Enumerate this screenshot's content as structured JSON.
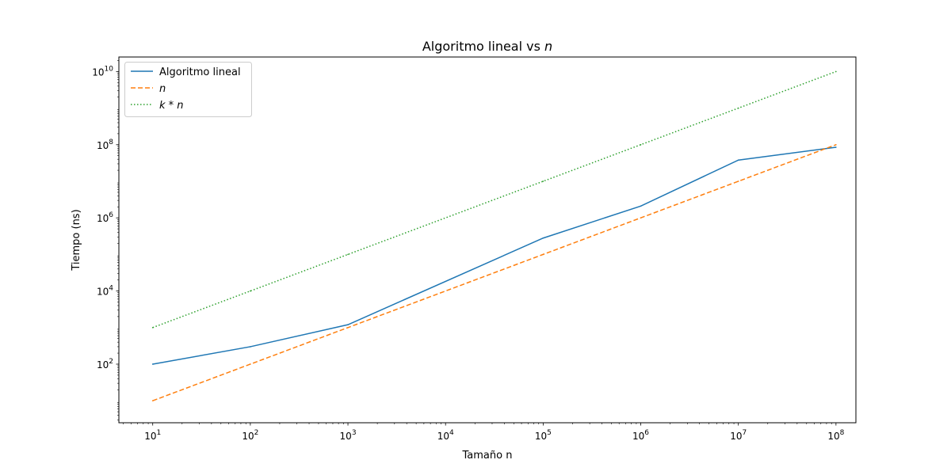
{
  "chart_data": {
    "type": "line",
    "title": "Algoritmo lineal vs n",
    "title_parts": {
      "prefix": "Algoritmo lineal vs ",
      "var": "n"
    },
    "xlabel": "Tamaño n",
    "ylabel": "Tiempo (ns)",
    "xscale": "log",
    "yscale": "log",
    "xlim": [
      4.5,
      160000000
    ],
    "ylim": [
      2.5,
      25000000000
    ],
    "x": [
      10,
      100,
      1000,
      100000,
      1000000,
      10000000,
      100000000
    ],
    "x_ticks": [
      10,
      100,
      1000,
      10000,
      100000,
      1000000,
      10000000,
      100000000
    ],
    "x_tick_labels": [
      {
        "base": "10",
        "exp": "1"
      },
      {
        "base": "10",
        "exp": "2"
      },
      {
        "base": "10",
        "exp": "3"
      },
      {
        "base": "10",
        "exp": "4"
      },
      {
        "base": "10",
        "exp": "5"
      },
      {
        "base": "10",
        "exp": "6"
      },
      {
        "base": "10",
        "exp": "7"
      },
      {
        "base": "10",
        "exp": "8"
      }
    ],
    "y_ticks": [
      100,
      10000,
      1000000,
      100000000,
      10000000000
    ],
    "y_tick_labels": [
      {
        "base": "10",
        "exp": "2"
      },
      {
        "base": "10",
        "exp": "4"
      },
      {
        "base": "10",
        "exp": "6"
      },
      {
        "base": "10",
        "exp": "8"
      },
      {
        "base": "10",
        "exp": "10"
      }
    ],
    "series": [
      {
        "name": "Algoritmo lineal",
        "color": "#1f77b4",
        "style": "solid",
        "x": [
          10,
          100,
          1000,
          100000,
          1000000,
          10000000,
          100000000
        ],
        "values": [
          100,
          300,
          1200,
          280000,
          2100000,
          38000000,
          85000000
        ]
      },
      {
        "name": "n",
        "color": "#ff7f0e",
        "style": "dashed",
        "x": [
          10,
          100,
          1000,
          100000,
          1000000,
          10000000,
          100000000
        ],
        "values": [
          10,
          100,
          1000,
          100000,
          1000000,
          10000000,
          100000000
        ]
      },
      {
        "name": "k * n",
        "color": "#2ca02c",
        "style": "dotted",
        "x": [
          10,
          100,
          1000,
          100000,
          1000000,
          10000000,
          100000000
        ],
        "values": [
          1000,
          10000,
          100000,
          10000000,
          100000000,
          1000000000,
          10000000000
        ]
      }
    ],
    "legend": {
      "position": "top-left",
      "items": [
        {
          "plain": "Algoritmo lineal"
        },
        {
          "math": "n"
        },
        {
          "math": "k * n"
        }
      ]
    },
    "grid": false
  }
}
